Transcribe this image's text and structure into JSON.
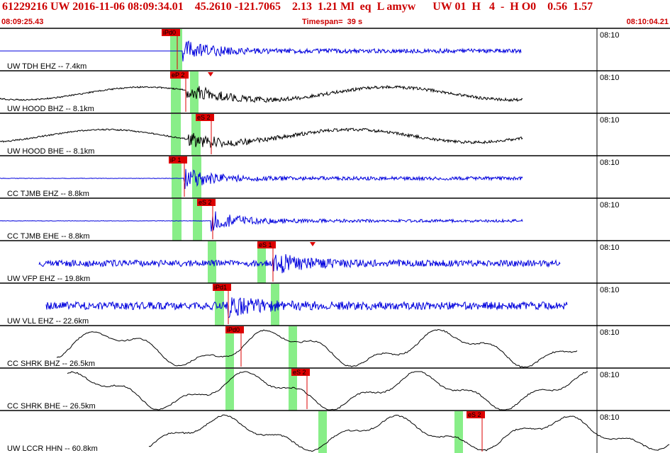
{
  "header": {
    "title": "61229216 UW 2016-11-06 08:09:34.01    45.2610 -121.7065    2.13  1.21 Ml  eq  L amyw      UW 01  H   4  -  H O0    0.56  1.57",
    "start_time": "08:09:25.43",
    "timespan": "Timespan=  39 s",
    "end_time": "08:10:04.21"
  },
  "colors": {
    "trace_blue": "#0000dd",
    "trace_black": "#000000",
    "pick_red": "#dd0000",
    "window_green": "#88ee88"
  },
  "traces": [
    {
      "label": "UW TDH EHZ -- 7.4km",
      "time_tick": "08:10",
      "color": "#0000dd",
      "type": "hf",
      "amp": 6,
      "start": 0,
      "end": 735,
      "onset": 258,
      "green": [
        240,
        257
      ],
      "picks": [
        {
          "label": "iPd0",
          "x": 250
        }
      ]
    },
    {
      "label": "UW HOOD BHZ -- 8.1km",
      "time_tick": "08:10",
      "color": "#000000",
      "type": "mix",
      "amp": 6,
      "start": 0,
      "end": 737,
      "onset": 262,
      "green": [
        241,
        255,
        268,
        280
      ],
      "picks": [
        {
          "label": "eP 2",
          "x": 262
        },
        {
          "label": "",
          "x": 297
        }
      ]
    },
    {
      "label": "UW HOOD BHE -- 8.1km",
      "time_tick": "08:10",
      "color": "#000000",
      "type": "mix",
      "amp": 8,
      "start": 0,
      "end": 737,
      "onset": 265,
      "green": [
        241,
        255,
        270,
        283
      ],
      "picks": [
        {
          "label": "eS 2",
          "x": 298
        }
      ]
    },
    {
      "label": "CC TJMB EHZ -- 8.8km",
      "time_tick": "08:10",
      "color": "#0000dd",
      "type": "hf",
      "amp": 5,
      "start": 0,
      "end": 737,
      "onset": 260,
      "green": [
        242,
        256,
        271,
        284
      ],
      "picks": [
        {
          "label": "iP 1",
          "x": 260
        }
      ]
    },
    {
      "label": "CC TJMB EHE -- 8.8km",
      "time_tick": "08:10",
      "color": "#0000dd",
      "type": "hf",
      "amp": 4,
      "start": 0,
      "end": 737,
      "onset": 298,
      "green": [
        243,
        256,
        272,
        285
      ],
      "picks": [
        {
          "label": "eS 2",
          "x": 300
        }
      ]
    },
    {
      "label": "UW VFP EHZ -- 19.8km",
      "time_tick": "08:10",
      "color": "#0000dd",
      "type": "hf",
      "amp": 9,
      "start": 55,
      "end": 790,
      "onset": 385,
      "green": [
        293,
        305,
        363,
        375
      ],
      "picks": [
        {
          "label": "eS 1",
          "x": 385
        },
        {
          "label": "",
          "x": 441
        }
      ]
    },
    {
      "label": "UW VLL EHZ -- 22.6km",
      "time_tick": "08:10",
      "color": "#0000dd",
      "type": "hf",
      "amp": 11,
      "start": 65,
      "end": 800,
      "onset": 322,
      "green": [
        303,
        316,
        382,
        394
      ],
      "picks": [
        {
          "label": "iPd1",
          "x": 322
        }
      ]
    },
    {
      "label": "CC SHRK BHZ -- 26.5km",
      "time_tick": "08:10",
      "color": "#000000",
      "type": "lf",
      "amp": 22,
      "start": 80,
      "end": 815,
      "onset": 340,
      "green": [
        318,
        330,
        407,
        419
      ],
      "picks": [
        {
          "label": "iPd0",
          "x": 340
        }
      ]
    },
    {
      "label": "CC SHRK BHE -- 26.5km",
      "time_tick": "08:10",
      "color": "#000000",
      "type": "lf",
      "amp": 22,
      "start": 95,
      "end": 830,
      "onset": 433,
      "green": [
        318,
        330,
        407,
        419
      ],
      "picks": [
        {
          "label": "eS 2",
          "x": 433
        }
      ]
    },
    {
      "label": "UW LCCR HHN -- 60.8km",
      "time_tick": "08:10",
      "color": "#000000",
      "type": "lf",
      "amp": 20,
      "start": 210,
      "end": 945,
      "onset": 680,
      "green": [
        449,
        461,
        641,
        653
      ],
      "picks": [
        {
          "label": "eS 2",
          "x": 680
        }
      ]
    }
  ]
}
